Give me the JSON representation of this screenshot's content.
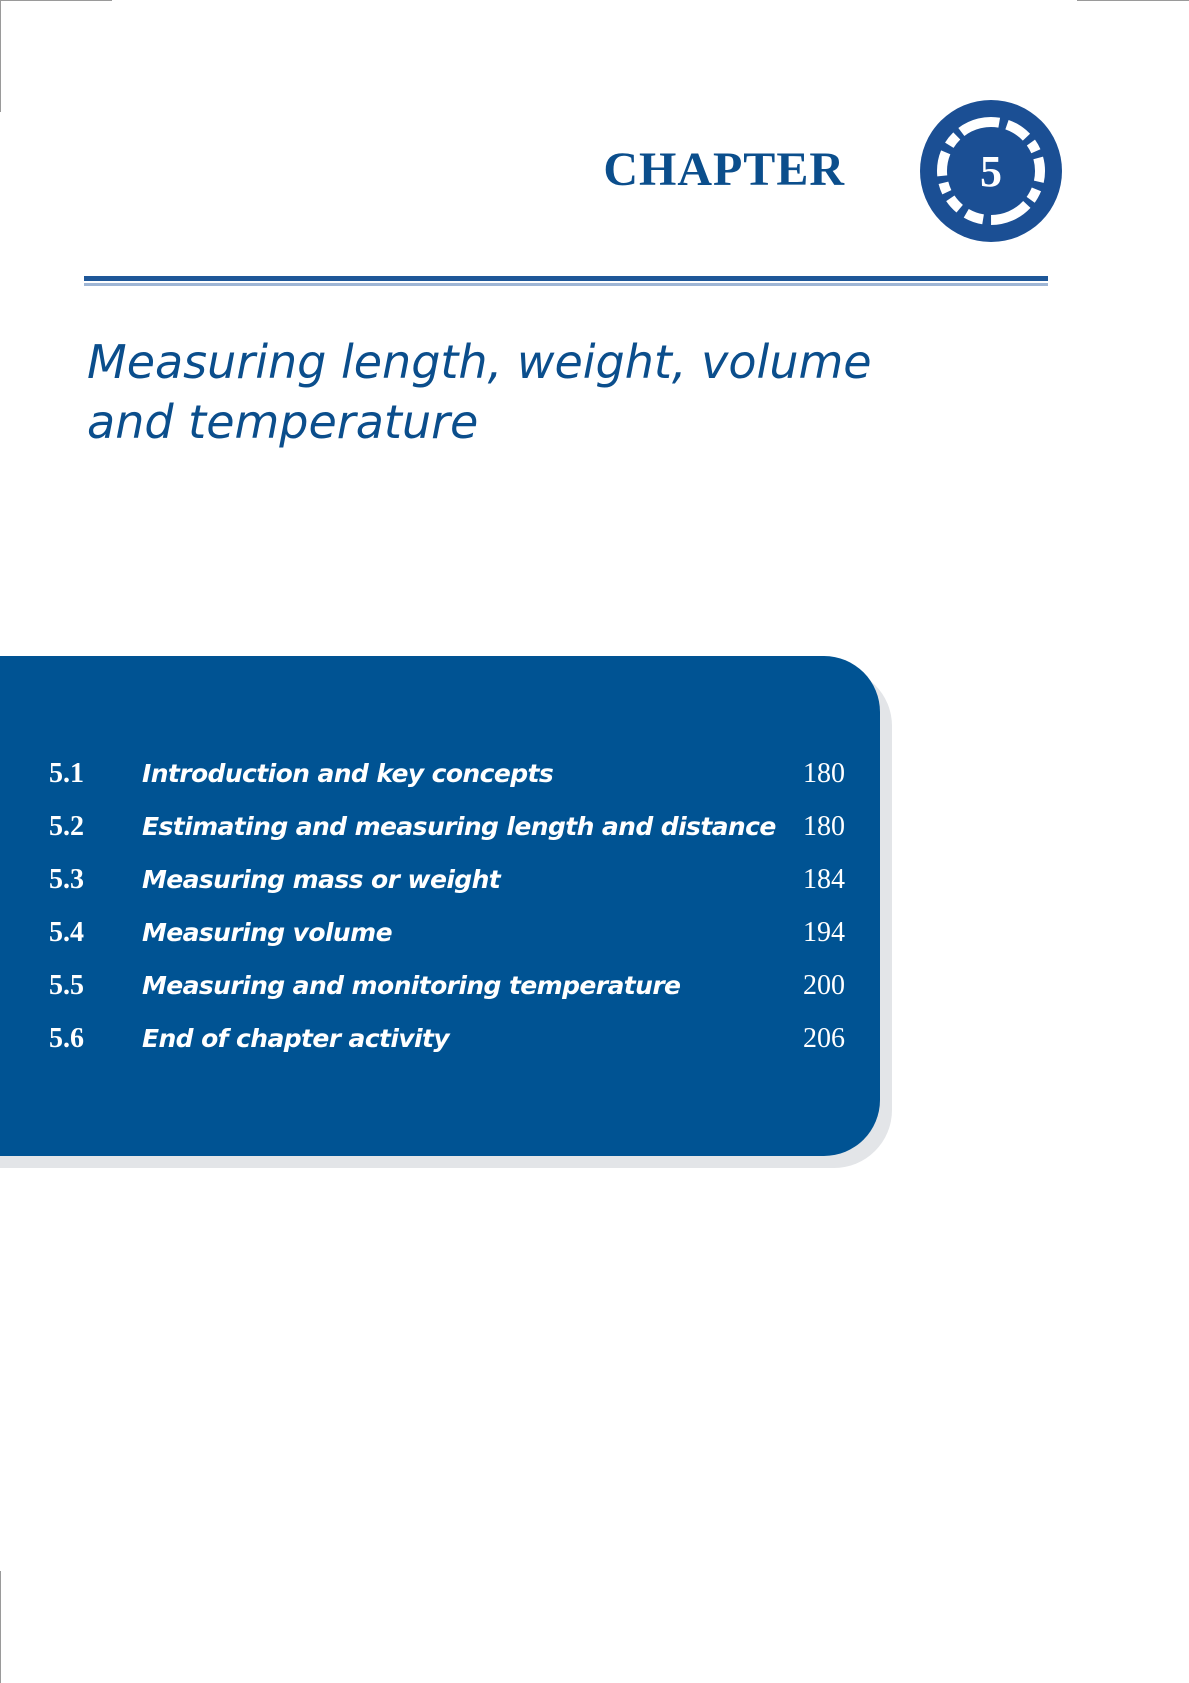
{
  "header": {
    "chapter_label": "CHAPTER",
    "chapter_number": "5",
    "accent_color": "#0b4e8c"
  },
  "title": "Measuring length, weight, volume and temperature",
  "title_lines": [
    "Measuring length, weight, volume",
    "and temperature"
  ],
  "toc": {
    "panel_color": "#005393",
    "entries": [
      {
        "number": "5.1",
        "title": "Introduction and key concepts",
        "page": "180"
      },
      {
        "number": "5.2",
        "title": "Estimating and measuring length and distance",
        "page": "180"
      },
      {
        "number": "5.3",
        "title": "Measuring mass or weight",
        "page": "184"
      },
      {
        "number": "5.4",
        "title": "Measuring volume",
        "page": "194"
      },
      {
        "number": "5.5",
        "title": "Measuring and monitoring temperature",
        "page": "200"
      },
      {
        "number": "5.6",
        "title": "End of chapter activity",
        "page": "206"
      }
    ]
  }
}
